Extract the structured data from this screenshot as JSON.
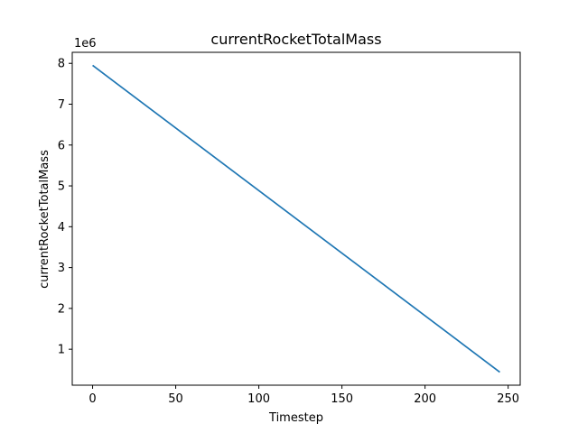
{
  "chart_data": {
    "type": "line",
    "title": "currentRocketTotalMass",
    "xlabel": "Timestep",
    "ylabel": "currentRocketTotalMass",
    "y_offset_label": "1e6",
    "xlim": [
      -12.25,
      257.25
    ],
    "ylim": [
      0.12,
      8.27
    ],
    "xticks": [
      0,
      50,
      100,
      150,
      200,
      250
    ],
    "xtick_labels": [
      "0",
      "50",
      "100",
      "150",
      "200",
      "250"
    ],
    "yticks": [
      1,
      2,
      3,
      4,
      5,
      6,
      7,
      8
    ],
    "ytick_labels": [
      "1",
      "2",
      "3",
      "4",
      "5",
      "6",
      "7",
      "8"
    ],
    "grid": false,
    "series": [
      {
        "color": "#1f77b4",
        "x": [
          0,
          245
        ],
        "y": [
          7.95,
          0.44
        ]
      }
    ]
  }
}
